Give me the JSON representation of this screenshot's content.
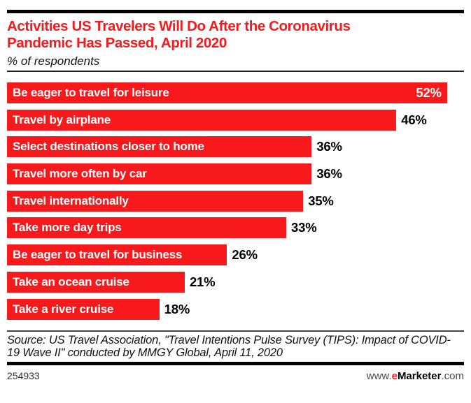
{
  "header": {
    "title": "Activities US Travelers Will Do After the Coronavirus Pandemic Has Passed, April 2020",
    "title_lines": [
      "Activities US Travelers Will Do After the Coronavirus",
      "Pandemic Has Passed, April 2020"
    ],
    "subtitle": "% of respondents"
  },
  "chart_data": {
    "type": "bar",
    "orientation": "horizontal",
    "title": "Activities US Travelers Will Do After the Coronavirus Pandemic Has Passed, April 2020",
    "subtitle": "% of respondents",
    "unit": "% of respondents",
    "categories": [
      "Be eager to travel for leisure",
      "Travel by airplane",
      "Select destinations closer to home",
      "Travel more often by car",
      "Travel internationally",
      "Take more day trips",
      "Be eager to travel for business",
      "Take an ocean cruise",
      "Take a river cruise"
    ],
    "values": [
      52,
      46,
      36,
      36,
      35,
      33,
      26,
      21,
      18
    ],
    "value_labels": [
      "52%",
      "46%",
      "36%",
      "36%",
      "35%",
      "33%",
      "26%",
      "21%",
      "18%"
    ],
    "value_label_placement": [
      "inside",
      "outside",
      "outside",
      "outside",
      "outside",
      "outside",
      "outside",
      "outside",
      "outside"
    ],
    "xlim": [
      0,
      54
    ],
    "grid": false,
    "legend": false,
    "axes_shown": false,
    "bar_color": "#F8191C",
    "bar_label_color": "#ffffff",
    "value_label_color_inside": "#ffffff",
    "value_label_color_outside": "#000000"
  },
  "footer": {
    "source": "Source: US Travel Association, \"Travel Intentions Pulse Survey (TIPS): Impact of COVID-19 Wave II\" conducted by MMGY Global, April 11, 2020",
    "chart_id": "254933",
    "brand_www": "www.",
    "brand_e": "e",
    "brand_marketer": "Marketer",
    "brand_com": ".com"
  },
  "colors": {
    "accent_red": "#F8191C",
    "rule_black": "#000000",
    "background": "#ffffff"
  }
}
